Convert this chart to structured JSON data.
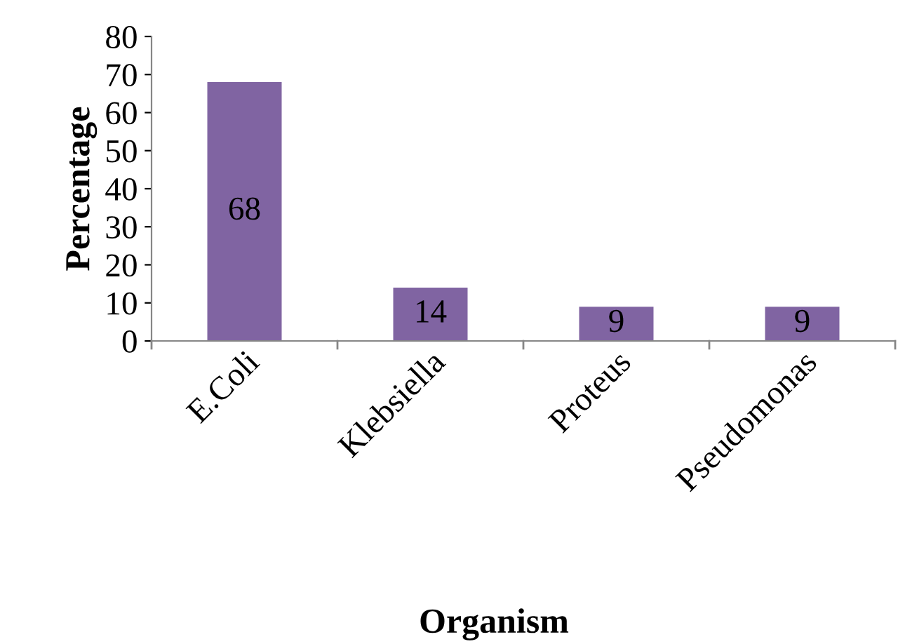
{
  "chart_data": {
    "type": "bar",
    "xlabel": "Organism",
    "ylabel": "Percentage",
    "categories": [
      "E.Coli",
      "Klebsiella",
      "Proteus",
      "Pseudomonas"
    ],
    "values": [
      68,
      14,
      9,
      9
    ],
    "color": "#8064a2",
    "data_labels": true,
    "ylim": [
      0,
      80
    ],
    "yticks": [
      0,
      10,
      20,
      30,
      40,
      50,
      60,
      70,
      80
    ],
    "grid": false,
    "legend": false
  }
}
